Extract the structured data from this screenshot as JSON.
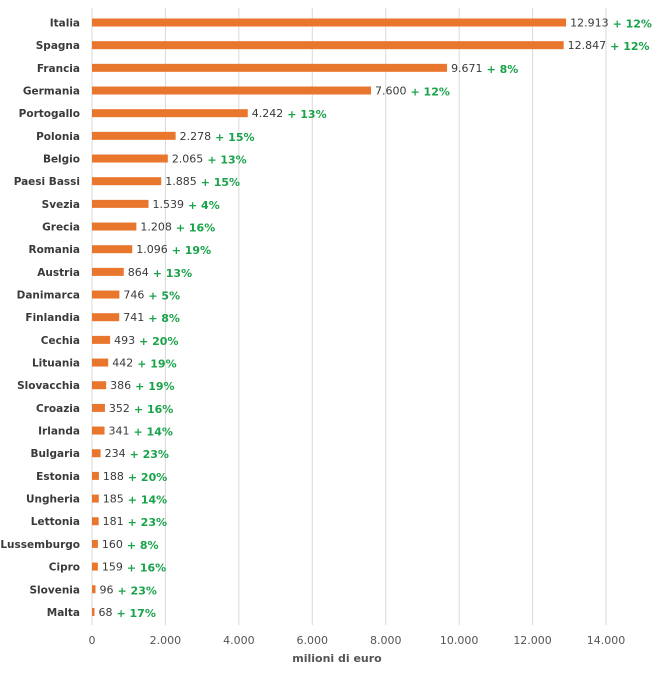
{
  "chart_data": {
    "type": "bar",
    "orientation": "horizontal",
    "xlabel": "milioni di euro",
    "xlim": [
      0,
      14000
    ],
    "xticks": [
      "0",
      "2.000",
      "4.000",
      "6.000",
      "8.000",
      "10.000",
      "12.000",
      "14.000"
    ],
    "grid": true,
    "bar_color": "#e8762d",
    "change_color": "#1aa34a",
    "categories": [
      "Italia",
      "Spagna",
      "Francia",
      "Germania",
      "Portogallo",
      "Polonia",
      "Belgio",
      "Paesi Bassi",
      "Svezia",
      "Grecia",
      "Romania",
      "Austria",
      "Danimarca",
      "Finlandia",
      "Cechia",
      "Lituania",
      "Slovacchia",
      "Croazia",
      "Irlanda",
      "Bulgaria",
      "Estonia",
      "Ungheria",
      "Lettonia",
      "Lussemburgo",
      "Cipro",
      "Slovenia",
      "Malta"
    ],
    "values": [
      12913,
      12847,
      9671,
      7600,
      4242,
      2278,
      2065,
      1885,
      1539,
      1208,
      1096,
      864,
      746,
      741,
      493,
      442,
      386,
      352,
      341,
      234,
      188,
      185,
      181,
      160,
      159,
      96,
      68
    ],
    "value_labels": [
      "12.913",
      "12.847",
      "9.671",
      "7.600",
      "4.242",
      "2.278",
      "2.065",
      "1.885",
      "1.539",
      "1.208",
      "1.096",
      "864",
      "746",
      "741",
      "493",
      "442",
      "386",
      "352",
      "341",
      "234",
      "188",
      "185",
      "181",
      "160",
      "159",
      "96",
      "68"
    ],
    "changes": [
      "+ 12%",
      "+ 12%",
      "+ 8%",
      "+ 12%",
      "+ 13%",
      "+ 15%",
      "+ 13%",
      "+ 15%",
      "+ 4%",
      "+ 16%",
      "+ 19%",
      "+ 13%",
      "+ 5%",
      "+ 8%",
      "+ 20%",
      "+ 19%",
      "+ 19%",
      "+ 16%",
      "+ 14%",
      "+ 23%",
      "+ 20%",
      "+ 14%",
      "+ 23%",
      "+ 8%",
      "+ 16%",
      "+ 23%",
      "+ 17%"
    ]
  }
}
